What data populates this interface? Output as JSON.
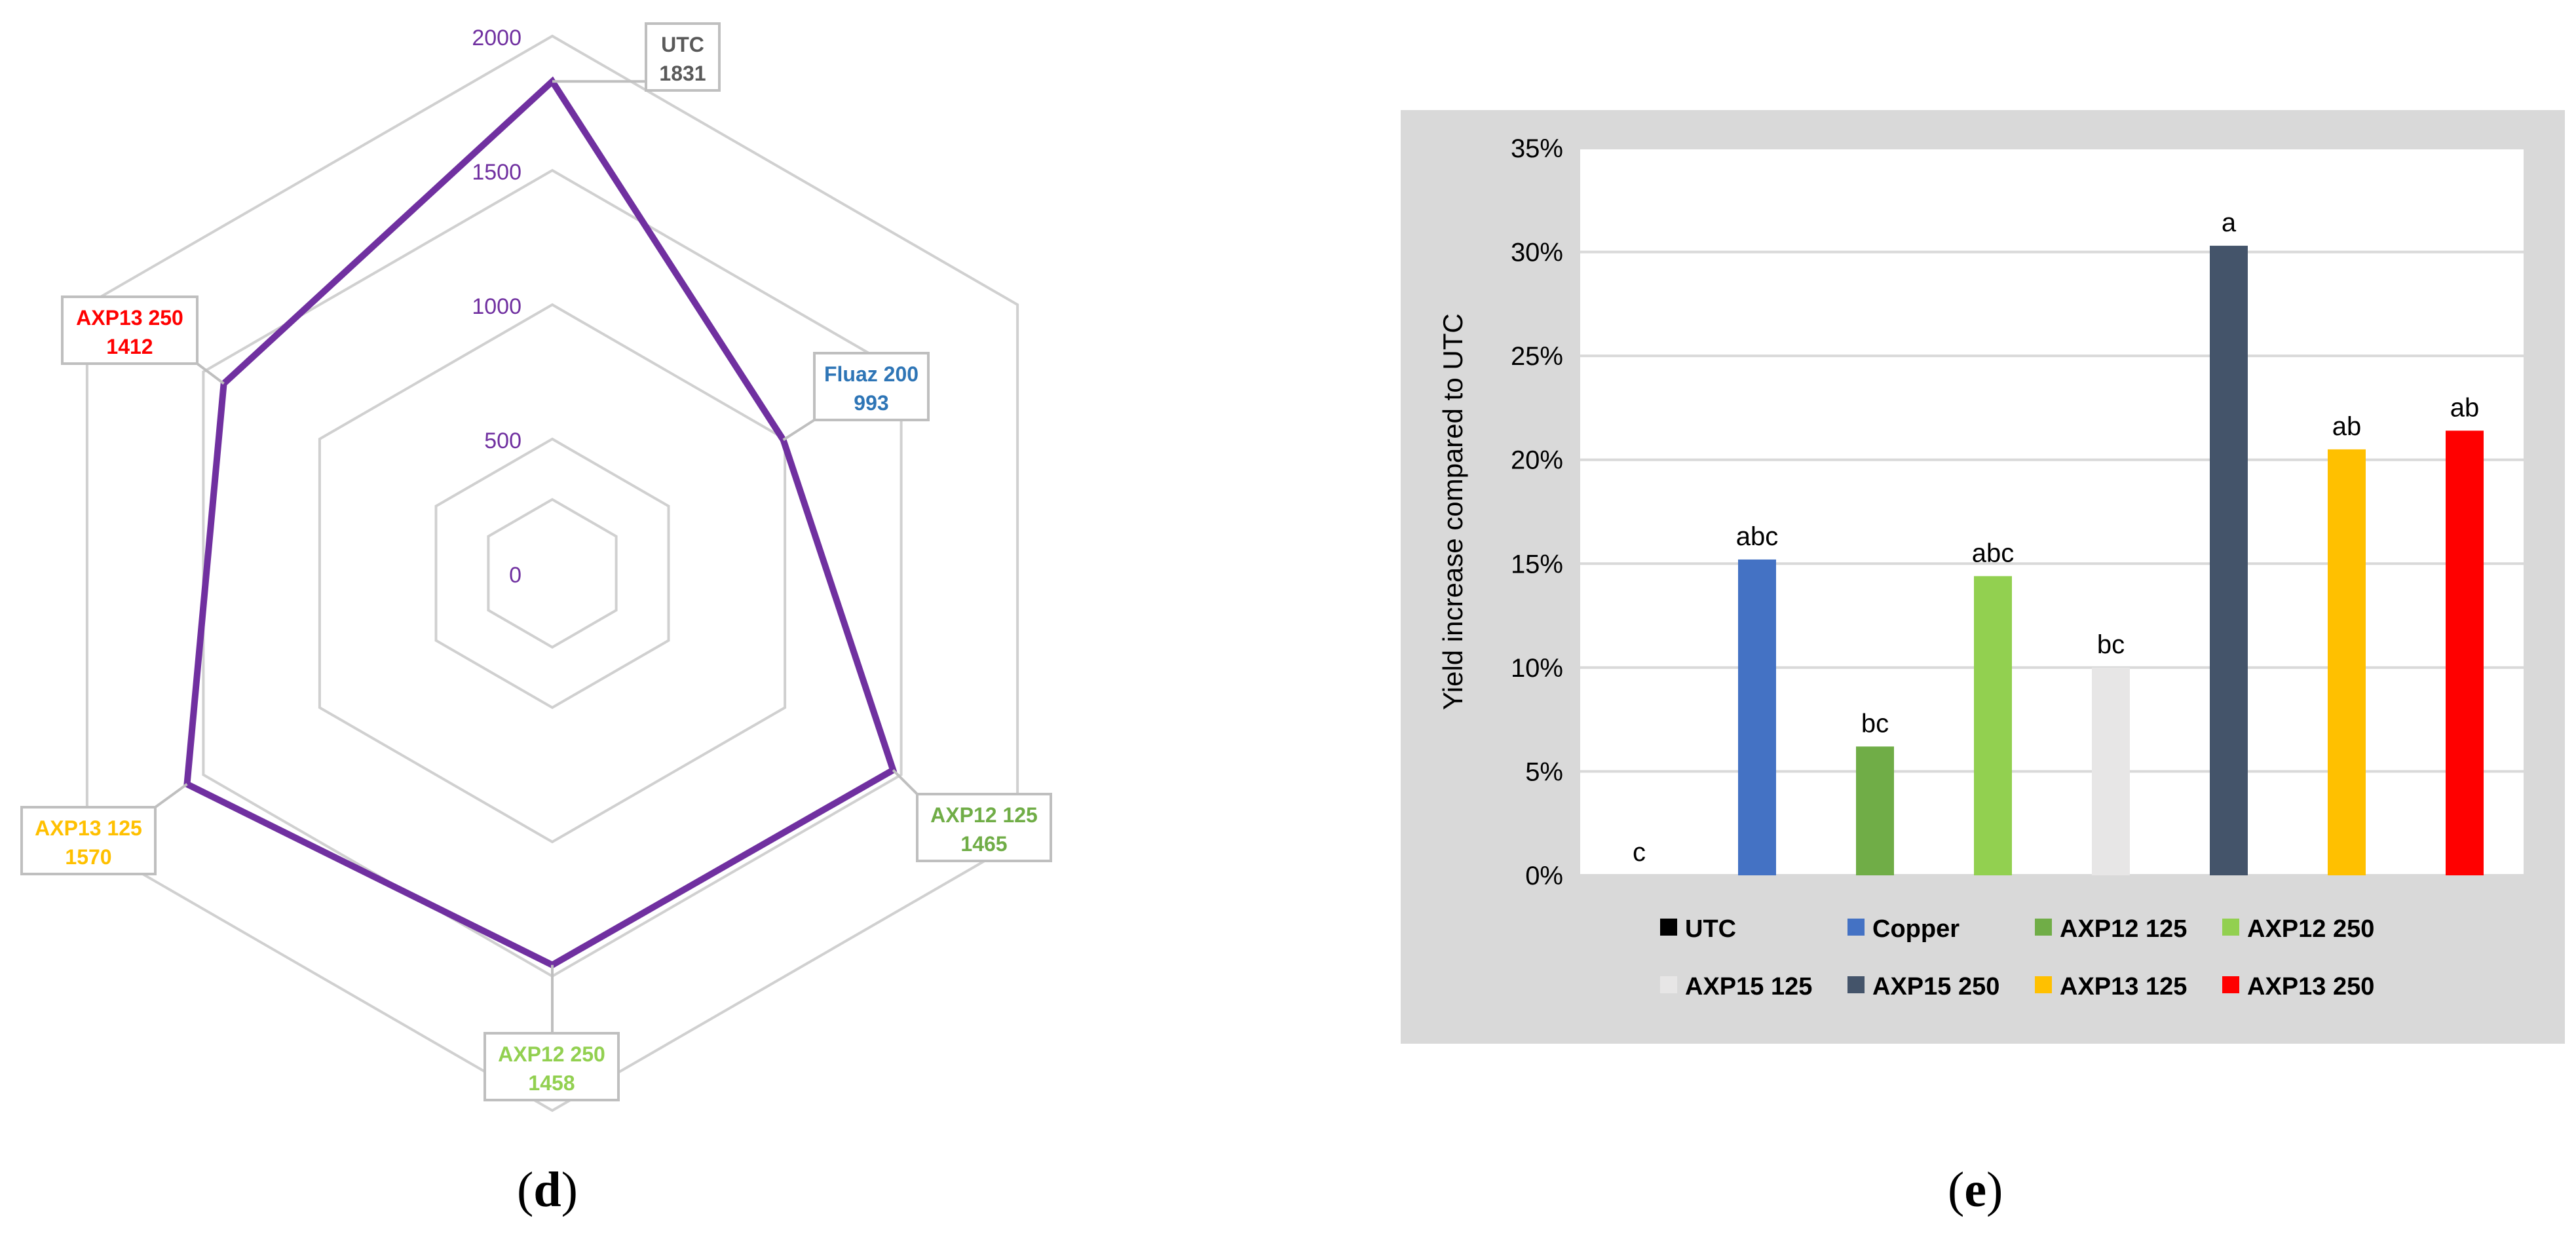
{
  "chart_data": [
    {
      "type": "radar",
      "panel_label": "d",
      "rlim": [
        0,
        2000
      ],
      "r_ticks": [
        0,
        500,
        1000,
        1500,
        2000
      ],
      "r_tick_color": "#7030a0",
      "series_color": "#7030a0",
      "grid_color": "#d0d0d0",
      "axes": [
        {
          "name": "UTC",
          "value": 1831,
          "color": "#595959"
        },
        {
          "name": "Fluaz 200",
          "value": 993,
          "color": "#2e75b6"
        },
        {
          "name": "AXP12 125",
          "value": 1465,
          "color": "#70ad47"
        },
        {
          "name": "AXP12 250",
          "value": 1458,
          "color": "#92d050"
        },
        {
          "name": "AXP13 125",
          "value": 1570,
          "color": "#ffc000"
        },
        {
          "name": "AXP13 250",
          "value": 1412,
          "color": "#ff0000"
        }
      ]
    },
    {
      "type": "bar",
      "panel_label": "e",
      "ylabel": "Yield increase compared to UTC",
      "ylim": [
        0,
        35
      ],
      "y_ticks": [
        0,
        5,
        10,
        15,
        20,
        25,
        30,
        35
      ],
      "y_tick_suffix": "%",
      "grid": true,
      "legend_position": "bottom",
      "categories": [
        "UTC",
        "Copper",
        "AXP12 125",
        "AXP12 250",
        "AXP15 125",
        "AXP15 250",
        "AXP13 125",
        "AXP13 250"
      ],
      "values": [
        0,
        15.2,
        6.2,
        14.4,
        10.0,
        30.3,
        20.5,
        21.4
      ],
      "letters": [
        "c",
        "abc",
        "bc",
        "abc",
        "bc",
        "a",
        "ab",
        "ab"
      ],
      "colors": [
        "#000000",
        "#4472c4",
        "#70ad47",
        "#92d050",
        "#e7e6e6",
        "#44546a",
        "#ffc000",
        "#ff0000"
      ]
    }
  ]
}
